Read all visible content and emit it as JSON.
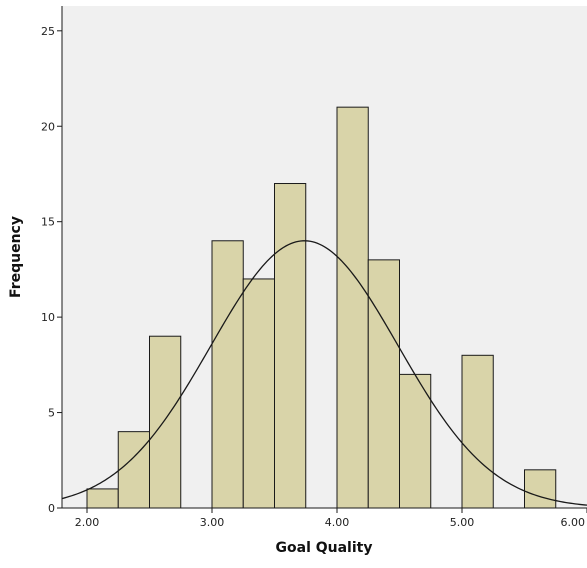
{
  "chart_data": {
    "type": "bar",
    "subtype": "histogram",
    "title": "",
    "xlabel": "Goal Quality",
    "ylabel": "Frequency",
    "xlim": [
      1.8,
      6.0
    ],
    "ylim": [
      0,
      26.3
    ],
    "x_ticks": [
      2.0,
      3.0,
      4.0,
      5.0,
      6.0
    ],
    "x_tick_labels": [
      "2.00",
      "3.00",
      "4.00",
      "5.00",
      "6.00"
    ],
    "y_ticks": [
      0,
      5,
      10,
      15,
      20,
      25
    ],
    "y_tick_labels": [
      "0",
      "5",
      "10",
      "15",
      "20",
      "25"
    ],
    "bin_width": 0.25,
    "bins": [
      {
        "x0": 2.0,
        "x1": 2.25,
        "count": 1
      },
      {
        "x0": 2.25,
        "x1": 2.5,
        "count": 4
      },
      {
        "x0": 2.5,
        "x1": 2.75,
        "count": 9
      },
      {
        "x0": 3.0,
        "x1": 3.25,
        "count": 14
      },
      {
        "x0": 3.25,
        "x1": 3.5,
        "count": 12
      },
      {
        "x0": 3.5,
        "x1": 3.75,
        "count": 17
      },
      {
        "x0": 4.0,
        "x1": 4.25,
        "count": 21
      },
      {
        "x0": 4.25,
        "x1": 4.5,
        "count": 13
      },
      {
        "x0": 4.5,
        "x1": 4.75,
        "count": 7
      },
      {
        "x0": 5.0,
        "x1": 5.25,
        "count": 8
      },
      {
        "x0": 5.5,
        "x1": 5.75,
        "count": 2
      }
    ],
    "normal_curve": {
      "mean": 3.74,
      "std_dev": 0.75,
      "peak_frequency": 14.0
    },
    "grid": false,
    "legend": "none",
    "colors": {
      "bar_fill": "#d9d4a9",
      "bar_stroke": "#1a1a1a",
      "plot_background": "#f0f0f0",
      "curve": "#1a1a1a",
      "axis": "#1a1a1a"
    }
  }
}
